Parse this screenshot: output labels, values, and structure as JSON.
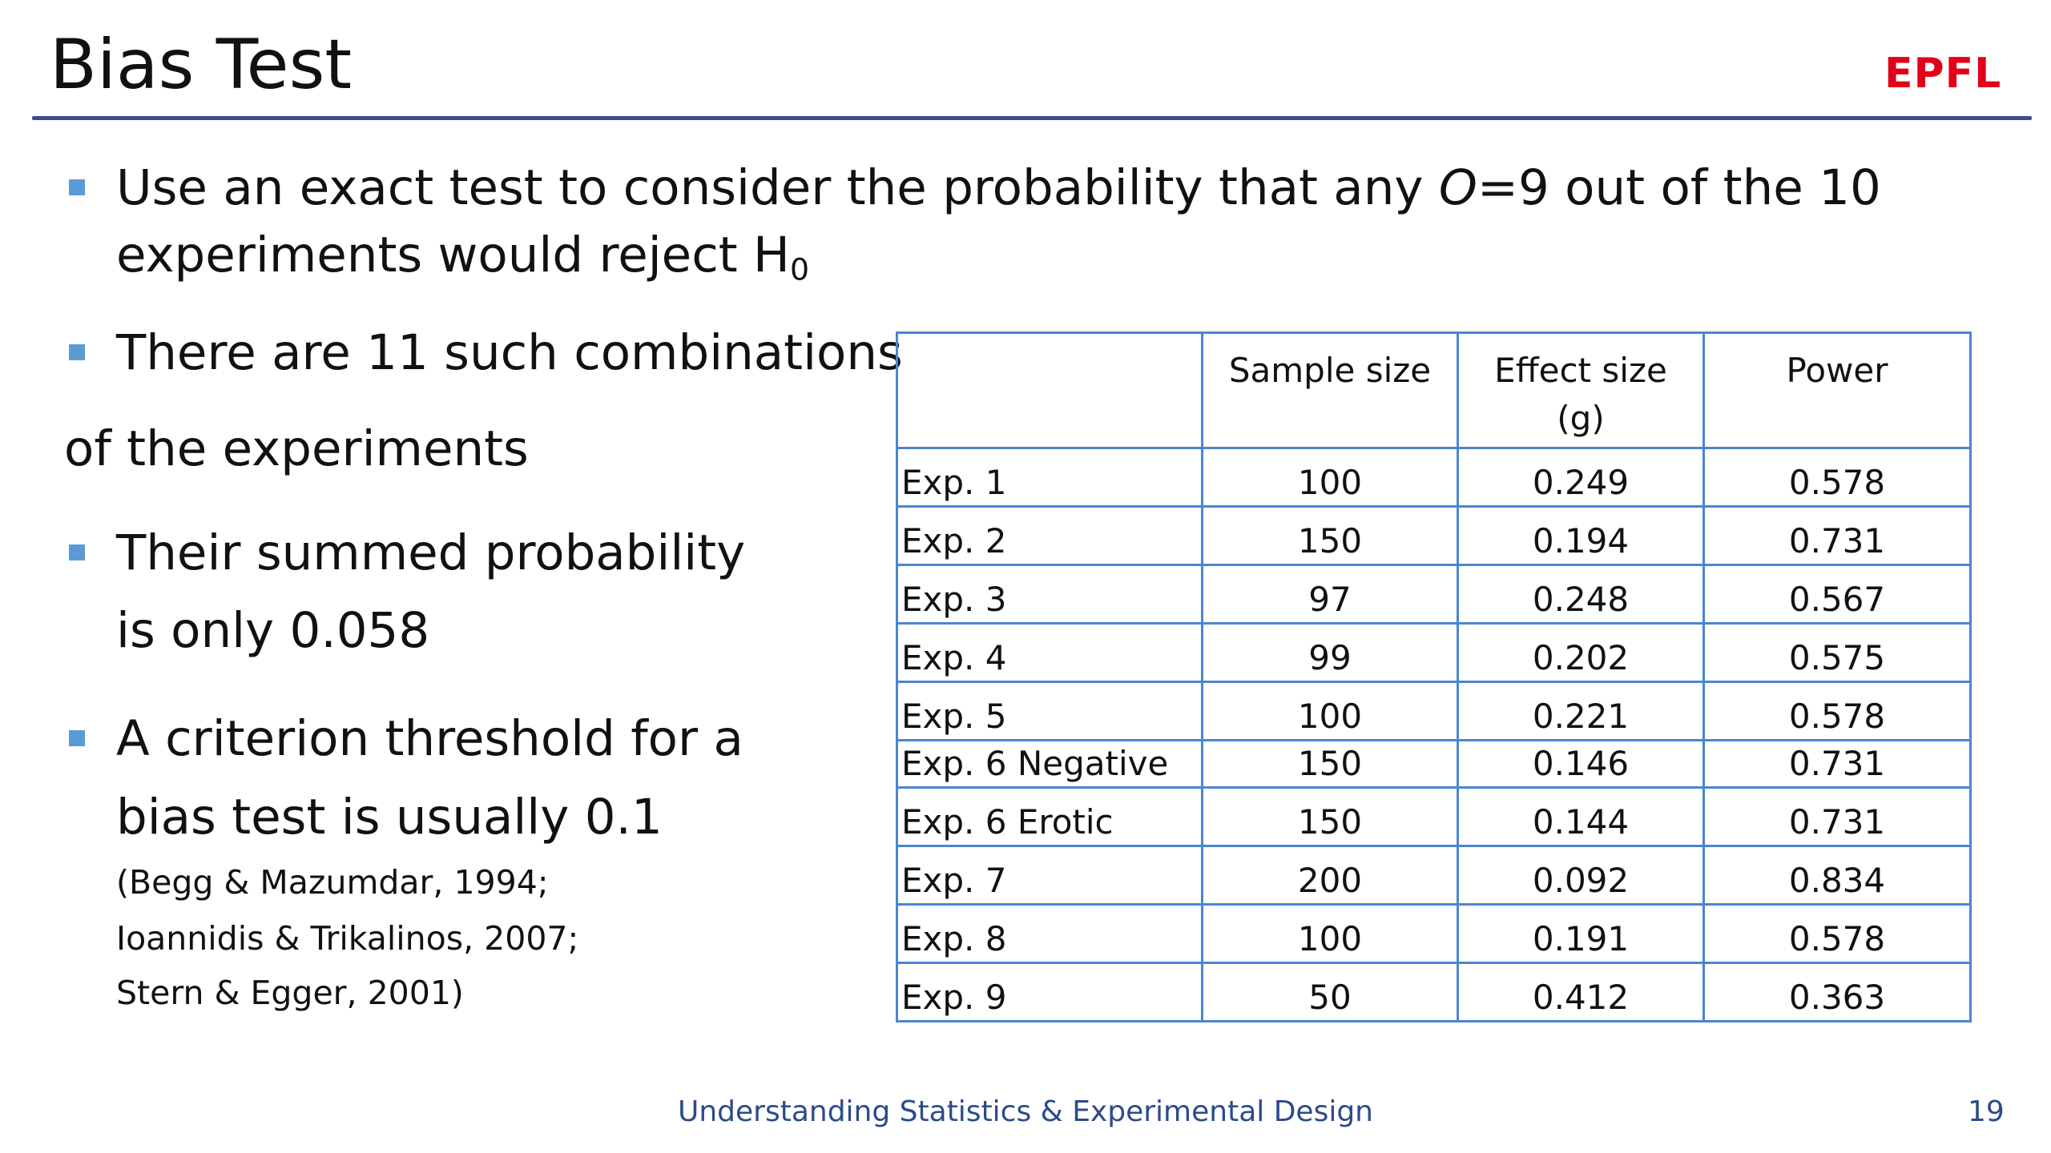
{
  "title": "Bias Test",
  "logo": "EPFL",
  "bullets": {
    "b1_line1_pre": "Use an exact test to consider the probability that any ",
    "b1_line1_var": "O",
    "b1_line1_post": "=9 out of the 10",
    "b1_line2": "experiments would reject H",
    "b1_line2_sub": "0",
    "b2_line1": "There are 11 such combinations",
    "b2_line2": "of the experiments",
    "b3_line1": "Their summed probability",
    "b3_line2": "is only 0.058",
    "b4_line1": "A criterion threshold for a",
    "b4_line2": "bias test is usually 0.1",
    "ref1": "(Begg & Mazumdar, 1994;",
    "ref2": "Ioannidis & Trikalinos, 2007;",
    "ref3": "Stern & Egger, 2001)"
  },
  "table": {
    "headers": [
      "",
      "Sample size",
      "Effect size",
      "Power"
    ],
    "header_effect_line2": "(g)",
    "rows": [
      [
        "Exp. 1",
        "100",
        "0.249",
        "0.578"
      ],
      [
        "Exp. 2",
        "150",
        "0.194",
        "0.731"
      ],
      [
        "Exp. 3",
        "97",
        "0.248",
        "0.567"
      ],
      [
        "Exp. 4",
        "99",
        "0.202",
        "0.575"
      ],
      [
        "Exp. 5",
        "100",
        "0.221",
        "0.578"
      ],
      [
        "Exp. 6 Negative",
        "150",
        "0.146",
        "0.731"
      ],
      [
        "Exp. 6 Erotic",
        "150",
        "0.144",
        "0.731"
      ],
      [
        "Exp. 7",
        "200",
        "0.092",
        "0.834"
      ],
      [
        "Exp. 8",
        "100",
        "0.191",
        "0.578"
      ],
      [
        "Exp. 9",
        "50",
        "0.412",
        "0.363"
      ]
    ]
  },
  "footer": {
    "course": "Understanding Statistics & Experimental Design",
    "page": "19"
  },
  "colors": {
    "bullet": "#5b9bd5",
    "table_border": "#4a86d0",
    "rule": "#3b4d8f",
    "footer_text": "#2c4b8a",
    "logo": "#e2001a"
  }
}
